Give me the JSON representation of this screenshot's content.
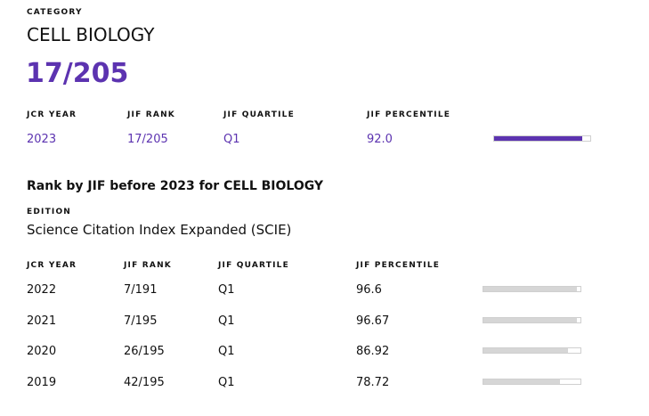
{
  "category_label": "CATEGORY",
  "category": "CELL BIOLOGY",
  "rank": "17/205",
  "current": {
    "headers": [
      "JCR YEAR",
      "JIF RANK",
      "JIF QUARTILE",
      "JIF PERCENTILE"
    ],
    "row": {
      "year": "2023",
      "rank": "17/205",
      "quartile": "Q1",
      "percentile": 92,
      "percentile_label": "92.0"
    }
  },
  "history_title": "Rank by JIF before 2023 for CELL BIOLOGY",
  "edition_label": "EDITION",
  "edition": "Science Citation Index Expanded (SCIE)",
  "history": {
    "headers": [
      "JCR YEAR",
      "JIF RANK",
      "JIF QUARTILE",
      "JIF PERCENTILE"
    ],
    "rows": [
      {
        "year": "2022",
        "rank": "7/191",
        "quartile": "Q1",
        "percentile": 96.6
      },
      {
        "year": "2021",
        "rank": "7/195",
        "quartile": "Q1",
        "percentile": 96.67
      },
      {
        "year": "2020",
        "rank": "26/195",
        "quartile": "Q1",
        "percentile": 86.92
      },
      {
        "year": "2019",
        "rank": "42/195",
        "quartile": "Q1",
        "percentile": 78.72
      }
    ]
  },
  "percentile_range": [
    0,
    100
  ]
}
